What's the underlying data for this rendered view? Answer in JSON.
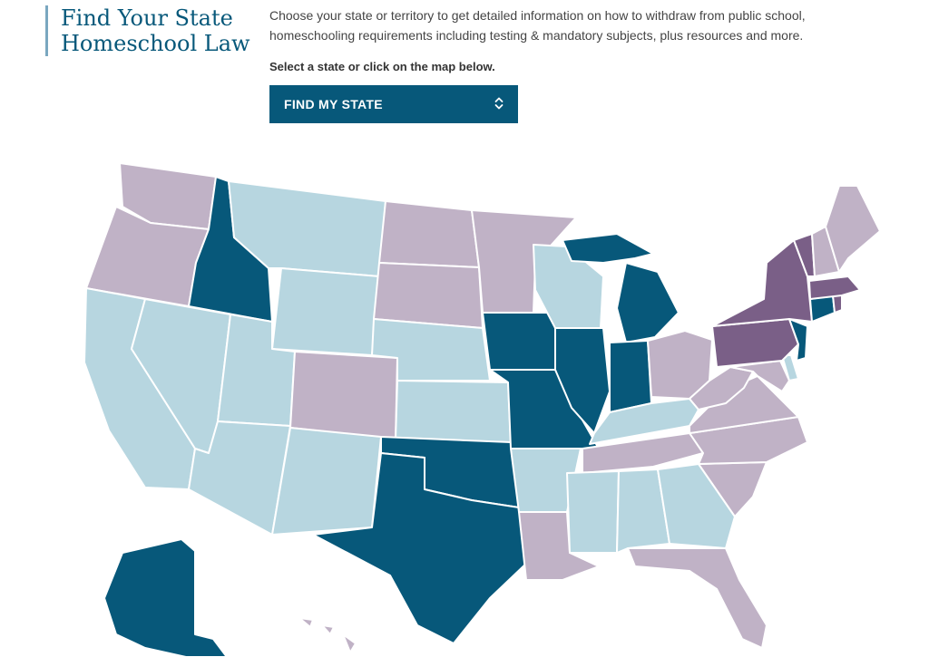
{
  "header": {
    "title_line1": "Find Your State",
    "title_line2": "Homeschool Law",
    "intro": "Choose your state or territory to get detailed information on how to withdraw from public school, homeschooling requirements including testing & mandatory subjects, plus resources and more.",
    "prompt": "Select a state or click on the map below."
  },
  "selector": {
    "label": "FIND MY STATE",
    "icon": "chevron-up-down-icon"
  },
  "legend_colors": {
    "low": "#b7d6e0",
    "moderate": "#c0b2c6",
    "high": "#7a5f87",
    "notice": "#07587a"
  },
  "map": {
    "states": [
      {
        "name": "Washington",
        "level": "moderate"
      },
      {
        "name": "Oregon",
        "level": "moderate"
      },
      {
        "name": "California",
        "level": "low"
      },
      {
        "name": "Idaho",
        "level": "notice"
      },
      {
        "name": "Nevada",
        "level": "low"
      },
      {
        "name": "Montana",
        "level": "low"
      },
      {
        "name": "Wyoming",
        "level": "low"
      },
      {
        "name": "Utah",
        "level": "low"
      },
      {
        "name": "Arizona",
        "level": "low"
      },
      {
        "name": "Colorado",
        "level": "moderate"
      },
      {
        "name": "New Mexico",
        "level": "low"
      },
      {
        "name": "North Dakota",
        "level": "moderate"
      },
      {
        "name": "South Dakota",
        "level": "moderate"
      },
      {
        "name": "Nebraska",
        "level": "low"
      },
      {
        "name": "Kansas",
        "level": "low"
      },
      {
        "name": "Oklahoma",
        "level": "notice"
      },
      {
        "name": "Texas",
        "level": "notice"
      },
      {
        "name": "Minnesota",
        "level": "moderate"
      },
      {
        "name": "Iowa",
        "level": "notice"
      },
      {
        "name": "Missouri",
        "level": "notice"
      },
      {
        "name": "Arkansas",
        "level": "low"
      },
      {
        "name": "Louisiana",
        "level": "moderate"
      },
      {
        "name": "Wisconsin",
        "level": "low"
      },
      {
        "name": "Illinois",
        "level": "notice"
      },
      {
        "name": "Michigan",
        "level": "notice"
      },
      {
        "name": "Indiana",
        "level": "notice"
      },
      {
        "name": "Ohio",
        "level": "moderate"
      },
      {
        "name": "Kentucky",
        "level": "low"
      },
      {
        "name": "Tennessee",
        "level": "moderate"
      },
      {
        "name": "Mississippi",
        "level": "low"
      },
      {
        "name": "Alabama",
        "level": "low"
      },
      {
        "name": "Georgia",
        "level": "low"
      },
      {
        "name": "Florida",
        "level": "moderate"
      },
      {
        "name": "South Carolina",
        "level": "moderate"
      },
      {
        "name": "North Carolina",
        "level": "moderate"
      },
      {
        "name": "Virginia",
        "level": "moderate"
      },
      {
        "name": "West Virginia",
        "level": "moderate"
      },
      {
        "name": "Maryland",
        "level": "moderate"
      },
      {
        "name": "Delaware",
        "level": "low"
      },
      {
        "name": "Pennsylvania",
        "level": "high"
      },
      {
        "name": "New Jersey",
        "level": "notice"
      },
      {
        "name": "New York",
        "level": "high"
      },
      {
        "name": "Connecticut",
        "level": "notice"
      },
      {
        "name": "Rhode Island",
        "level": "high"
      },
      {
        "name": "Massachusetts",
        "level": "high"
      },
      {
        "name": "Vermont",
        "level": "high"
      },
      {
        "name": "New Hampshire",
        "level": "moderate"
      },
      {
        "name": "Maine",
        "level": "moderate"
      },
      {
        "name": "Alaska",
        "level": "notice"
      },
      {
        "name": "Hawaii",
        "level": "moderate"
      }
    ]
  }
}
